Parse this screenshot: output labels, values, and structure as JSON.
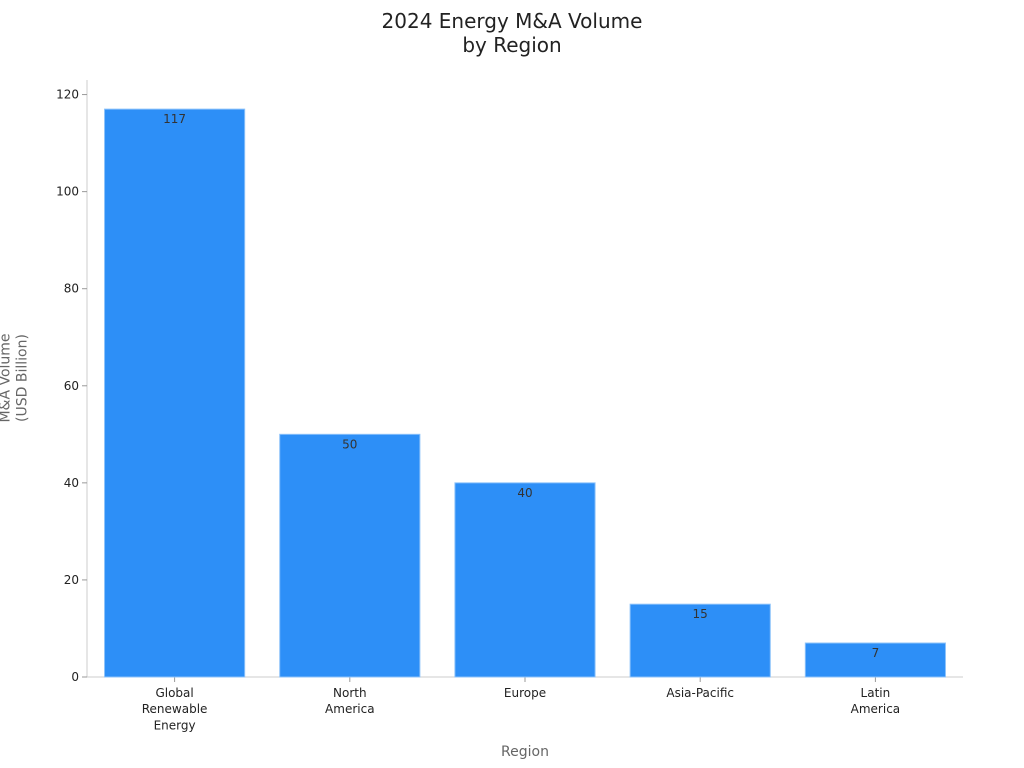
{
  "chart_data": {
    "type": "bar",
    "title": "2024 Energy M&A Volume\nby Region",
    "x_label": "Region",
    "y_label": "M&A Volume\n(USD Billion)",
    "categories": [
      "Global\nRenewable\nEnergy",
      "North\nAmerica",
      "Europe",
      "Asia-Pacific",
      "Latin\nAmerica"
    ],
    "values": [
      117,
      50,
      40,
      15,
      7
    ],
    "color": "#2d8ff7",
    "ylim": [
      0,
      123
    ],
    "yticks": [
      0,
      20,
      40,
      60,
      80,
      100,
      120
    ],
    "grid": false
  }
}
